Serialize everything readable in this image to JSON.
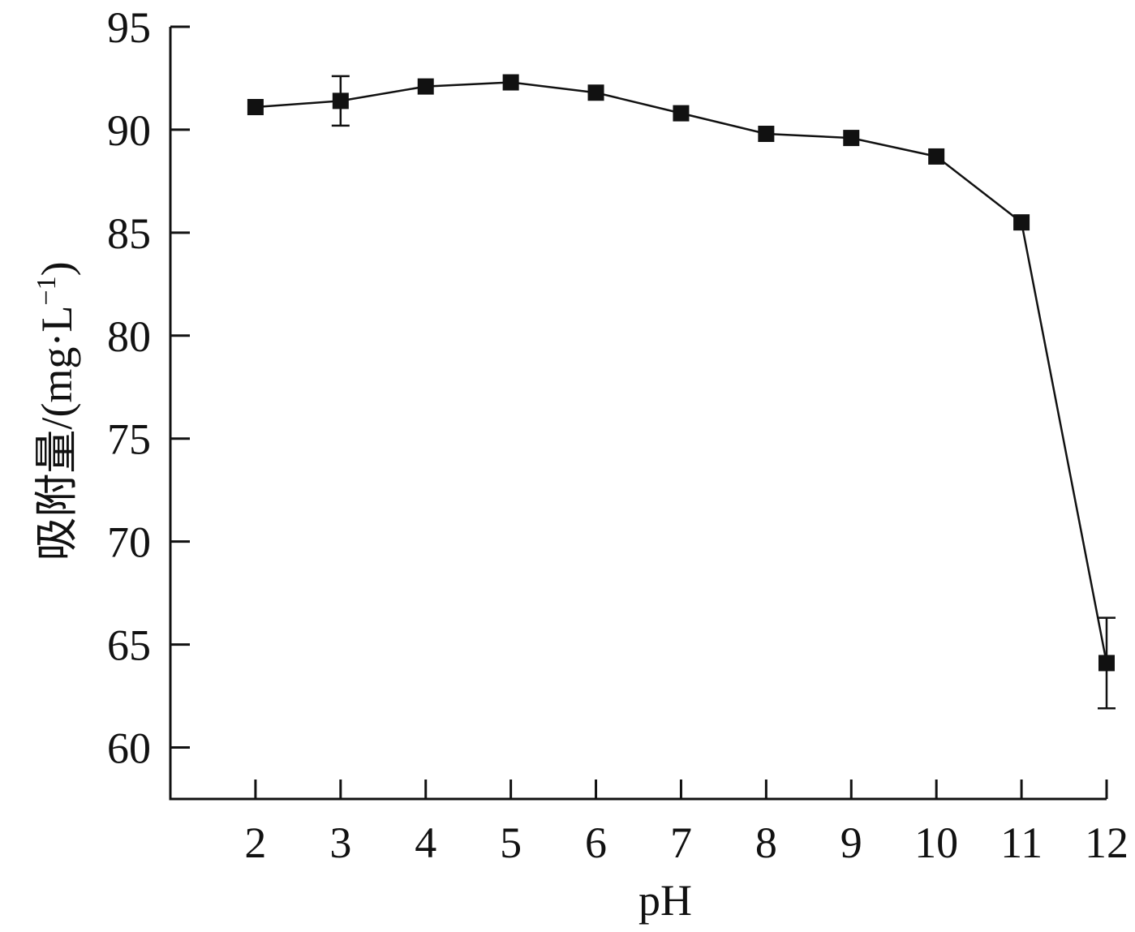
{
  "chart_data": {
    "type": "line",
    "xlabel": "pH",
    "ylabel": "吸附量/(mg·L",
    "ylabel_sup": "−1",
    "ylabel_close": ")",
    "x_ticks": [
      "2",
      "3",
      "4",
      "5",
      "6",
      "7",
      "8",
      "9",
      "10",
      "11",
      "12"
    ],
    "y_ticks": [
      "60",
      "65",
      "70",
      "75",
      "80",
      "85",
      "90",
      "95"
    ],
    "xlim": [
      1,
      12
    ],
    "ylim": [
      57.5,
      95
    ],
    "grid": false,
    "legend": "none",
    "series": [
      {
        "x": [
          2,
          3,
          4,
          5,
          6,
          7,
          8,
          9,
          10,
          11,
          12
        ],
        "y": [
          91.1,
          91.4,
          92.1,
          92.3,
          91.8,
          90.8,
          89.8,
          89.6,
          88.7,
          85.5,
          64.1
        ],
        "err": [
          0.3,
          1.2,
          0.3,
          0.3,
          0.3,
          0.3,
          0.3,
          0.3,
          0.3,
          0.3,
          2.2
        ],
        "color": "#111111",
        "marker": "square"
      }
    ]
  }
}
